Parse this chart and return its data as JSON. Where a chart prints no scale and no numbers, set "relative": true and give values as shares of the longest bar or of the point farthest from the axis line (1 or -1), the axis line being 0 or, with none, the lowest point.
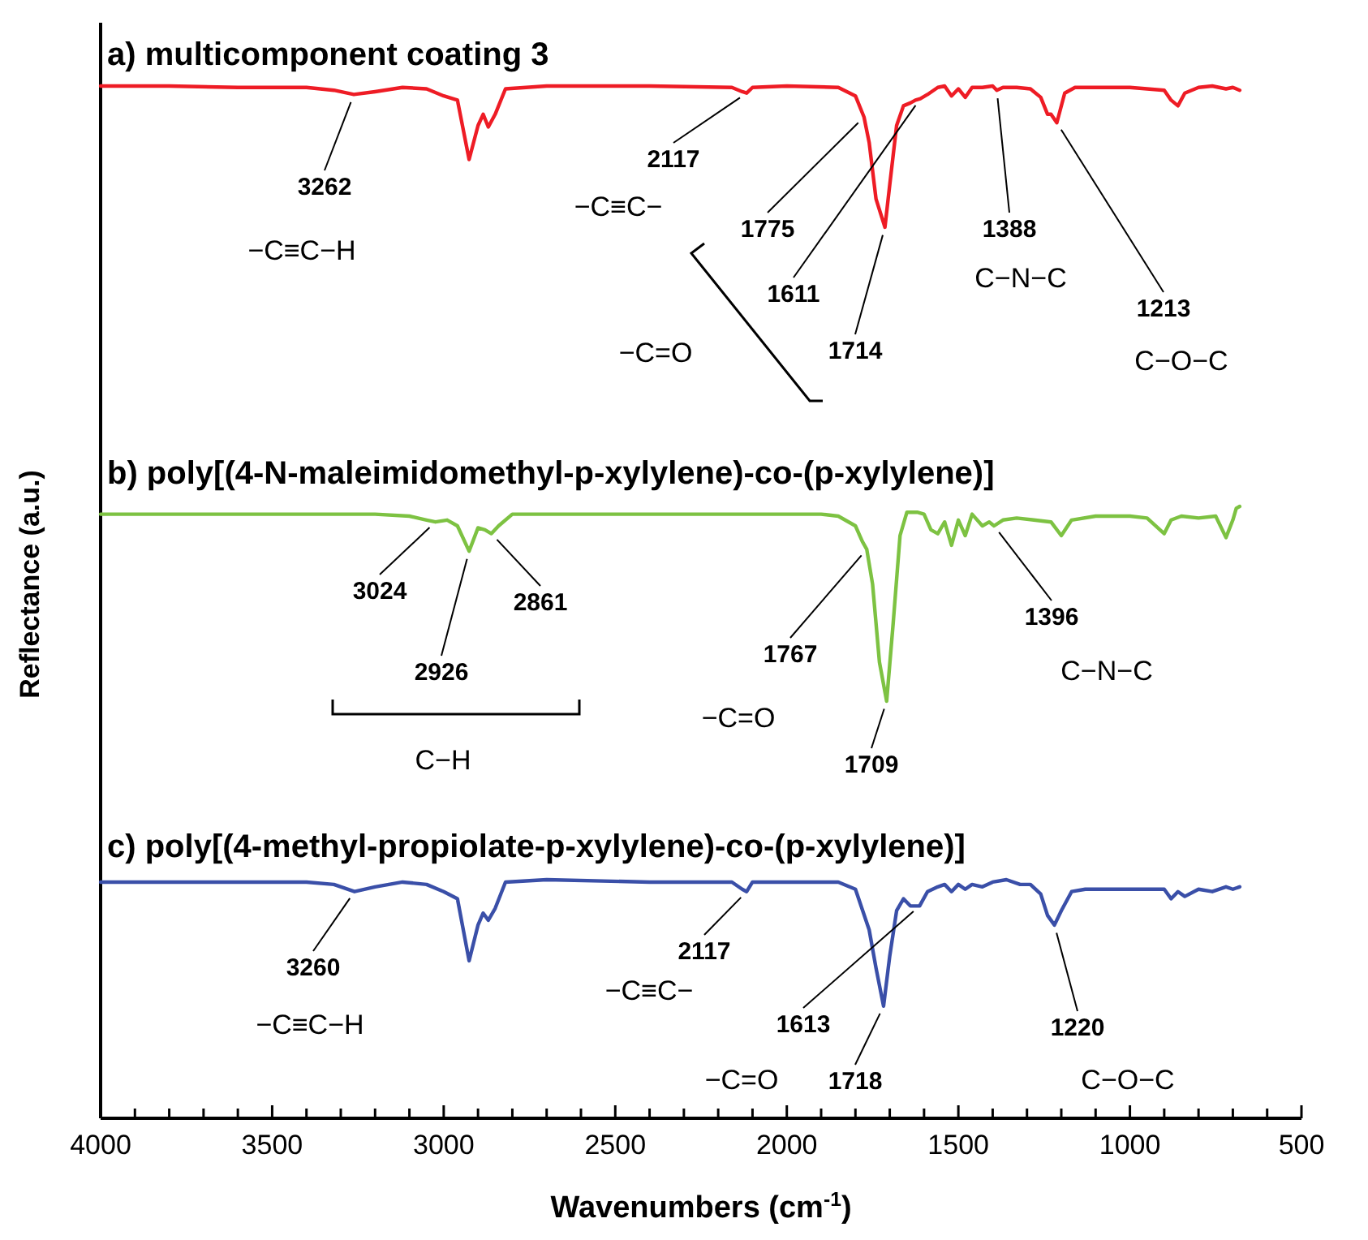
{
  "chart_data": [
    {
      "type": "line",
      "title": "a) multicomponent coating 3",
      "relative": true,
      "xlim": [
        4000,
        500
      ],
      "tick_labels": false,
      "x": [
        4000,
        3800,
        3600,
        3400,
        3320,
        3262,
        3200,
        3120,
        3050,
        3000,
        2960,
        2926,
        2900,
        2885,
        2870,
        2850,
        2820,
        2700,
        2400,
        2160,
        2130,
        2117,
        2100,
        2000,
        1850,
        1800,
        1775,
        1760,
        1740,
        1714,
        1700,
        1680,
        1660,
        1640,
        1625,
        1611,
        1590,
        1560,
        1540,
        1520,
        1500,
        1480,
        1460,
        1430,
        1400,
        1388,
        1370,
        1330,
        1290,
        1260,
        1240,
        1230,
        1213,
        1190,
        1160,
        1100,
        1000,
        950,
        900,
        880,
        860,
        840,
        800,
        760,
        720,
        700,
        680
      ],
      "series": [
        {
          "color": "#ee1c25",
          "values": [
            1,
            1,
            0.99,
            0.99,
            0.97,
            0.94,
            0.96,
            0.99,
            0.98,
            0.93,
            0.9,
            0.48,
            0.72,
            0.8,
            0.71,
            0.8,
            0.98,
            1,
            1,
            0.99,
            0.96,
            0.95,
            0.99,
            1,
            0.99,
            0.93,
            0.78,
            0.6,
            0.2,
            0,
            0.3,
            0.72,
            0.86,
            0.88,
            0.9,
            0.91,
            0.94,
            0.99,
            1,
            0.93,
            0.98,
            0.92,
            0.99,
            0.99,
            1,
            0.97,
            0.99,
            0.99,
            0.98,
            0.92,
            0.8,
            0.8,
            0.74,
            0.95,
            0.99,
            0.99,
            0.99,
            0.98,
            0.97,
            0.9,
            0.86,
            0.95,
            0.99,
            1,
            0.98,
            0.99,
            0.97
          ]
        }
      ],
      "annotations": [
        {
          "text": "3262",
          "x": 3262,
          "y": 0.94
        },
        {
          "text": "2117",
          "x": 2117,
          "y": 0.95
        },
        {
          "text": "1775",
          "x": 1775,
          "y": 0.78
        },
        {
          "text": "1611",
          "x": 1611,
          "y": 0.91
        },
        {
          "text": "1714",
          "x": 1714,
          "y": 0
        },
        {
          "text": "1388",
          "x": 1388,
          "y": 0.97
        },
        {
          "text": "1213",
          "x": 1213,
          "y": 0.74
        },
        "−C≡C−H",
        "−C≡C−",
        "−C=O",
        "C−N−C",
        "C−O−C"
      ]
    },
    {
      "type": "line",
      "title": "b) poly[(4-N-maleimidomethyl-p-xylylene)-co-(p-xylylene)]",
      "ylabel": "Reflectance (a.u.)",
      "relative": true,
      "xlim": [
        4000,
        500
      ],
      "tick_labels": false,
      "x": [
        4000,
        3700,
        3400,
        3200,
        3100,
        3050,
        3024,
        2990,
        2960,
        2926,
        2900,
        2880,
        2861,
        2840,
        2800,
        2500,
        2200,
        1900,
        1850,
        1800,
        1780,
        1767,
        1750,
        1730,
        1709,
        1690,
        1670,
        1650,
        1620,
        1600,
        1580,
        1560,
        1540,
        1520,
        1500,
        1480,
        1460,
        1430,
        1410,
        1396,
        1370,
        1330,
        1280,
        1230,
        1200,
        1170,
        1100,
        1000,
        950,
        900,
        880,
        850,
        800,
        750,
        720,
        700,
        690,
        680
      ],
      "series": [
        {
          "color": "#7dc242",
          "values": [
            0.96,
            0.96,
            0.96,
            0.96,
            0.95,
            0.93,
            0.92,
            0.93,
            0.9,
            0.77,
            0.89,
            0.88,
            0.86,
            0.9,
            0.96,
            0.96,
            0.96,
            0.96,
            0.95,
            0.9,
            0.82,
            0.78,
            0.6,
            0.2,
            0,
            0.4,
            0.85,
            0.97,
            0.97,
            0.96,
            0.88,
            0.86,
            0.92,
            0.8,
            0.93,
            0.85,
            0.96,
            0.9,
            0.92,
            0.9,
            0.93,
            0.94,
            0.93,
            0.92,
            0.85,
            0.93,
            0.95,
            0.95,
            0.94,
            0.86,
            0.93,
            0.95,
            0.94,
            0.95,
            0.84,
            0.93,
            0.99,
            1
          ]
        }
      ],
      "annotations": [
        {
          "text": "3024",
          "x": 3024,
          "y": 0.92
        },
        {
          "text": "2926",
          "x": 2926,
          "y": 0.77
        },
        {
          "text": "2861",
          "x": 2861,
          "y": 0.86
        },
        {
          "text": "1767",
          "x": 1767,
          "y": 0.78
        },
        {
          "text": "1709",
          "x": 1709,
          "y": 0
        },
        {
          "text": "1396",
          "x": 1396,
          "y": 0.9
        },
        "C−H",
        "−C=O",
        "C−N−C"
      ]
    },
    {
      "type": "line",
      "title": "c) poly[(4-methyl-propiolate-p-xylylene)-co-(p-xylylene)]",
      "xlabel": "Wavenumbers (cm$^{-1}$)",
      "relative": true,
      "xlim": [
        4000,
        500
      ],
      "tick_labels": "x",
      "xticks": [
        4000,
        {
          "value": 3900,
          "label": null
        },
        {
          "value": 3800,
          "label": null
        },
        {
          "value": 3700,
          "label": null
        },
        {
          "value": 3600,
          "label": null
        },
        3500,
        {
          "value": 3400,
          "label": null
        },
        {
          "value": 3300,
          "label": null
        },
        {
          "value": 3200,
          "label": null
        },
        {
          "value": 3100,
          "label": null
        },
        3000,
        {
          "value": 2900,
          "label": null
        },
        {
          "value": 2800,
          "label": null
        },
        {
          "value": 2700,
          "label": null
        },
        {
          "value": 2600,
          "label": null
        },
        2500,
        {
          "value": 2400,
          "label": null
        },
        {
          "value": 2300,
          "label": null
        },
        {
          "value": 2200,
          "label": null
        },
        {
          "value": 2100,
          "label": null
        },
        2000,
        {
          "value": 1900,
          "label": null
        },
        {
          "value": 1800,
          "label": null
        },
        {
          "value": 1700,
          "label": null
        },
        {
          "value": 1600,
          "label": null
        },
        1500,
        {
          "value": 1400,
          "label": null
        },
        {
          "value": 1300,
          "label": null
        },
        {
          "value": 1200,
          "label": null
        },
        {
          "value": 1100,
          "label": null
        },
        1000,
        {
          "value": 900,
          "label": null
        },
        {
          "value": 800,
          "label": null
        },
        {
          "value": 700,
          "label": null
        },
        {
          "value": 600,
          "label": null
        },
        500
      ],
      "x": [
        4000,
        3700,
        3400,
        3320,
        3260,
        3200,
        3120,
        3050,
        3000,
        2960,
        2926,
        2900,
        2885,
        2870,
        2850,
        2820,
        2700,
        2400,
        2160,
        2130,
        2117,
        2100,
        2000,
        1850,
        1800,
        1760,
        1740,
        1718,
        1700,
        1680,
        1660,
        1640,
        1613,
        1590,
        1560,
        1540,
        1520,
        1500,
        1480,
        1460,
        1430,
        1400,
        1360,
        1320,
        1290,
        1260,
        1240,
        1220,
        1200,
        1170,
        1130,
        1000,
        900,
        880,
        860,
        840,
        800,
        760,
        720,
        700,
        680
      ],
      "series": [
        {
          "color": "#3a4fa8",
          "values": [
            0.99,
            0.99,
            0.99,
            0.98,
            0.95,
            0.97,
            0.99,
            0.98,
            0.95,
            0.92,
            0.66,
            0.81,
            0.86,
            0.83,
            0.88,
            0.99,
            1,
            0.99,
            0.99,
            0.96,
            0.95,
            0.99,
            0.99,
            0.99,
            0.96,
            0.79,
            0.63,
            0.47,
            0.68,
            0.87,
            0.92,
            0.89,
            0.89,
            0.95,
            0.97,
            0.98,
            0.95,
            0.98,
            0.96,
            0.98,
            0.97,
            0.99,
            1,
            0.98,
            0.98,
            0.94,
            0.85,
            0.81,
            0.87,
            0.95,
            0.96,
            0.96,
            0.96,
            0.92,
            0.95,
            0.93,
            0.96,
            0.95,
            0.97,
            0.96,
            0.97
          ]
        }
      ],
      "annotations": [
        {
          "text": "3260",
          "x": 3260,
          "y": 0.95
        },
        {
          "text": "2117",
          "x": 2117,
          "y": 0.95
        },
        {
          "text": "1613",
          "x": 1613,
          "y": 0.89
        },
        {
          "text": "1718",
          "x": 1718,
          "y": 0.47
        },
        {
          "text": "1220",
          "x": 1220,
          "y": 0.81
        },
        "−C≡C−H",
        "−C≡C−",
        "−C=O",
        "C−O−C"
      ]
    }
  ]
}
